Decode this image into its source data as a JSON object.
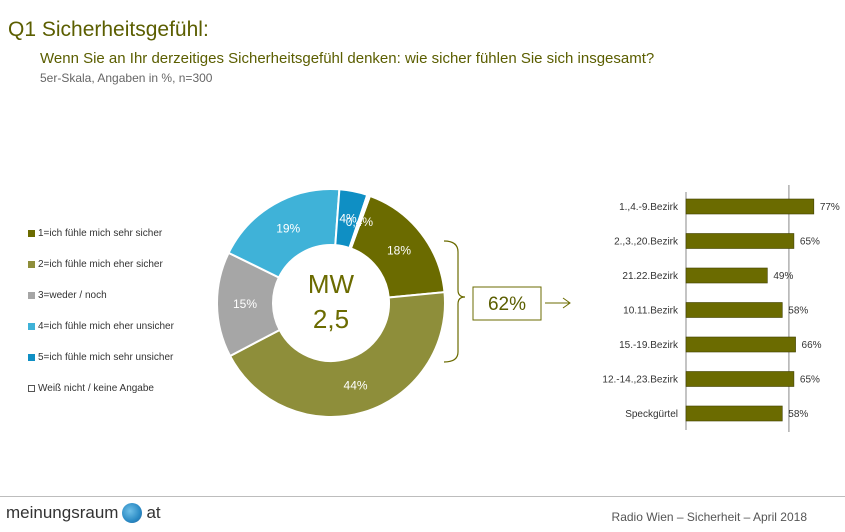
{
  "header": {
    "title": "Q1 Sicherheitsgefühl:",
    "question": "Wenn Sie an Ihr derzeitiges Sicherheitsgefühl denken: wie sicher fühlen Sie sich insgesamt?",
    "subtitle": "5er-Skala, Angaben in %, n=300"
  },
  "legend": [
    {
      "label": "1=ich fühle mich sehr sicher",
      "color": "#6b6b00"
    },
    {
      "label": "2=ich fühle mich eher sicher",
      "color": "#8e8e3a"
    },
    {
      "label": "3=weder / noch",
      "color": "#a6a6a6"
    },
    {
      "label": "4=ich fühle mich eher unsicher",
      "color": "#3fb2d8"
    },
    {
      "label": "5=ich fühle mich sehr unsicher",
      "color": "#0f8fc4"
    },
    {
      "label": "Weiß nicht / keine Angabe",
      "color": "#ffffff"
    }
  ],
  "chart_data": [
    {
      "type": "pie",
      "categories": [
        "1=ich fühle mich sehr sicher",
        "2=ich fühle mich eher sicher",
        "3=weder / noch",
        "4=ich fühle mich eher unsicher",
        "5=ich fühle mich sehr unsicher",
        "Weiß nicht / keine Angabe"
      ],
      "values": [
        18,
        44,
        15,
        19,
        4,
        0.4
      ],
      "labels": [
        "18%",
        "44%",
        "15%",
        "19%",
        "4%",
        "0,4%"
      ],
      "colors": [
        "#6b6b00",
        "#8e8e3a",
        "#a6a6a6",
        "#3fb2d8",
        "#0f8fc4",
        "#ffffff"
      ],
      "center_label": "MW",
      "center_value": "2,5"
    },
    {
      "type": "bar",
      "orientation": "horizontal",
      "categories": [
        "1.,4.-9.Bezirk",
        "2.,3.,20.Bezirk",
        "21.22.Bezirk",
        "10.11.Bezirk",
        "15.-19.Bezirk",
        "12.-14.,23.Bezirk",
        "Speckgürtel"
      ],
      "values": [
        77,
        65,
        49,
        58,
        66,
        65,
        58
      ],
      "value_labels": [
        "77%",
        "65%",
        "49%",
        "58%",
        "66%",
        "65%",
        "58%"
      ],
      "reference": 62,
      "bar_color": "#6b6b00"
    }
  ],
  "summary": {
    "top2": "62%",
    "color": "#6b6b00"
  },
  "footer": {
    "source": "Radio Wien – Sicherheit – April 2018",
    "logo_left": "meinungsraum",
    "logo_right": "at"
  }
}
